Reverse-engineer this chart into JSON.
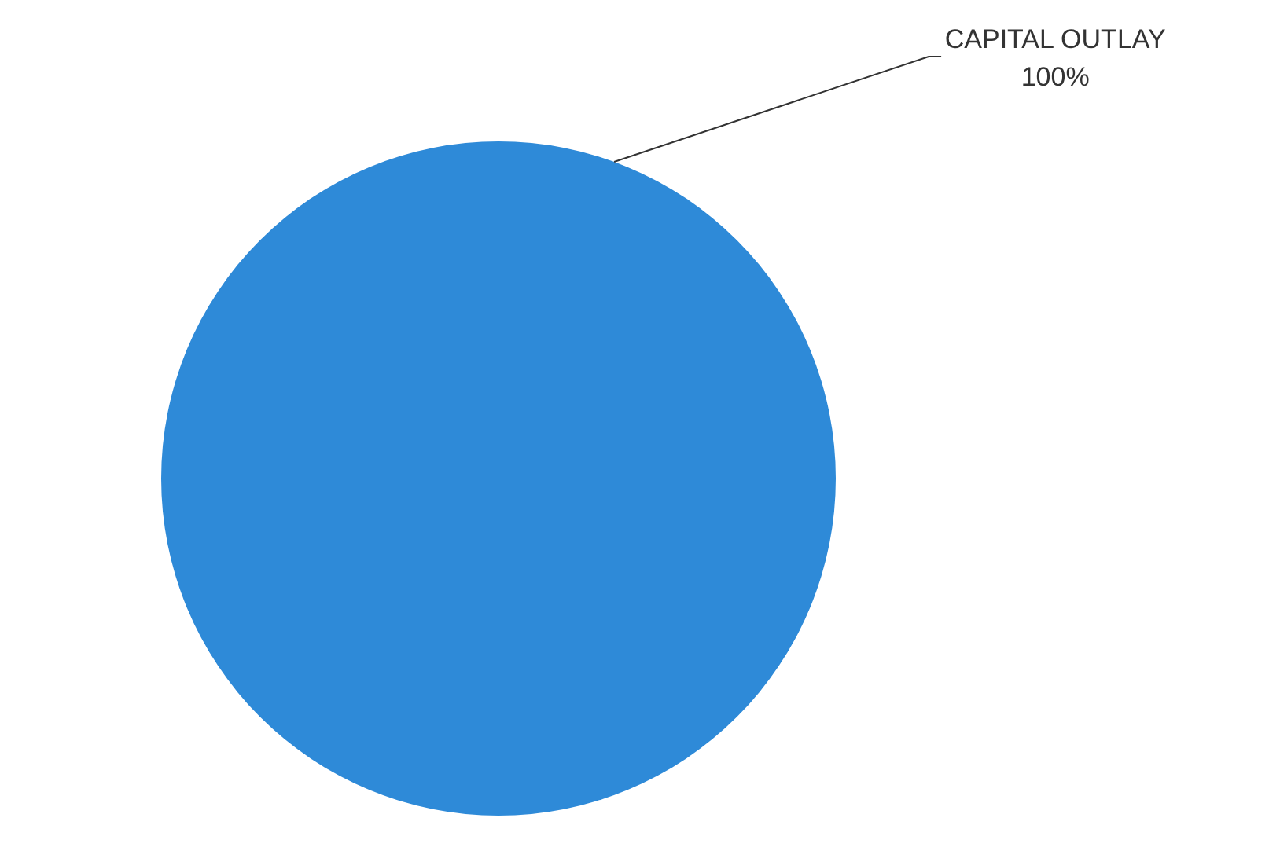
{
  "chart_data": {
    "type": "pie",
    "categories": [
      "CAPITAL OUTLAY"
    ],
    "values": [
      100
    ],
    "colors": [
      "#2e8ad8"
    ],
    "value_labels": [
      "100%"
    ]
  }
}
